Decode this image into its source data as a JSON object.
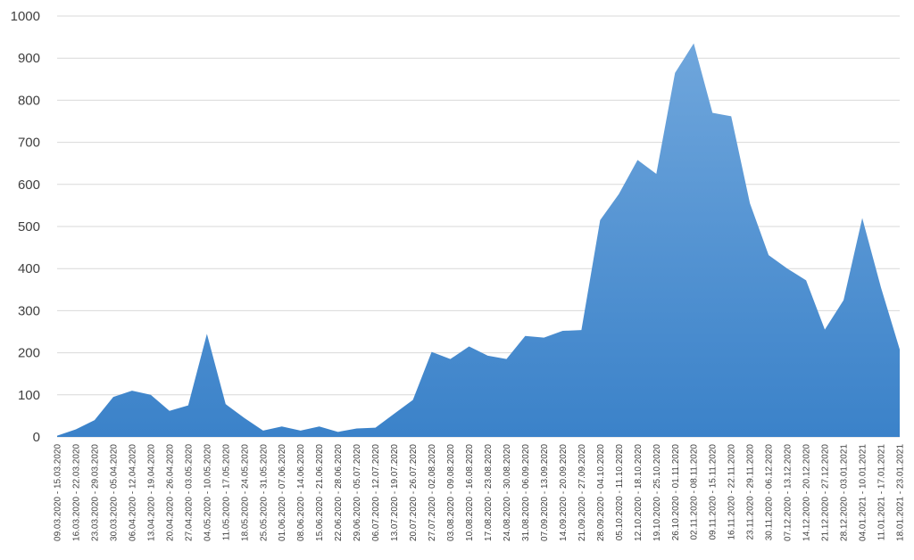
{
  "chart_data": {
    "type": "area",
    "title": "",
    "xlabel": "",
    "ylabel": "",
    "ylim": [
      0,
      1000
    ],
    "yticks": [
      "0",
      "100",
      "200",
      "300",
      "400",
      "500",
      "600",
      "700",
      "800",
      "900",
      "1000"
    ],
    "grid": true,
    "legend": "none",
    "fill_color_top": "#6fa6dc",
    "fill_color_bottom": "#3b82c9",
    "categories": [
      "09.03.2020 - 15.03.2020",
      "16.03.2020 - 22.03.2020",
      "23.03.2020 - 29.03.2020",
      "30.03.2020 - 05.04.2020",
      "06.04.2020 - 12.04.2020",
      "13.04.2020 - 19.04.2020",
      "20.04.2020 - 26.04.2020",
      "27.04.2020 - 03.05.2020",
      "04.05.2020 - 10.05.2020",
      "11.05.2020 - 17.05.2020",
      "18.05.2020 - 24.05.2020",
      "25.05.2020 - 31.05.2020",
      "01.06.2020 - 07.06.2020",
      "08.06.2020 - 14.06.2020",
      "15.06.2020 - 21.06.2020",
      "22.06.2020 - 28.06.2020",
      "29.06.2020 - 05.07.2020",
      "06.07.2020 - 12.07.2020",
      "13.07.2020 - 19.07.2020",
      "20.07.2020 - 26.07.2020",
      "27.07.2020 - 02.08.2020",
      "03.08.2020 - 09.08.2020",
      "10.08.2020 - 16.08.2020",
      "17.08.2020 - 23.08.2020",
      "24.08.2020 - 30.08.2020",
      "31.08.2020 - 06.09.2020",
      "07.09.2020 - 13.09.2020",
      "14.09.2020 - 20.09.2020",
      "21.09.2020 - 27.09.2020",
      "28.09.2020 - 04.10.2020",
      "05.10.2020 - 11.10.2020",
      "12.10.2020 - 18.10.2020",
      "19.10.2020 - 25.10.2020",
      "26.10.2020 - 01.11.2020",
      "02.11.2020 - 08.11.2020",
      "09.11.2020 - 15.11.2020",
      "16.11.2020 - 22.11.2020",
      "23.11.2020 - 29.11.2020",
      "30.11.2020 - 06.12.2020",
      "07.12.2020 - 13.12.2020",
      "14.12.2020 - 20.12.2020",
      "21.12.2020 - 27.12.2020",
      "28.12.2020 - 03.01.2021",
      "04.01.2021 - 10.01.2021",
      "11.01.2021 - 17.01.2021",
      "18.01.2021 - 23.01.2021"
    ],
    "values": [
      3,
      18,
      40,
      95,
      110,
      100,
      62,
      75,
      245,
      78,
      45,
      15,
      25,
      15,
      25,
      12,
      20,
      22,
      55,
      88,
      202,
      185,
      215,
      193,
      185,
      240,
      236,
      252,
      254,
      515,
      577,
      658,
      625,
      865,
      935,
      770,
      762,
      555,
      432,
      400,
      372,
      255,
      325,
      520,
      355,
      208
    ]
  }
}
